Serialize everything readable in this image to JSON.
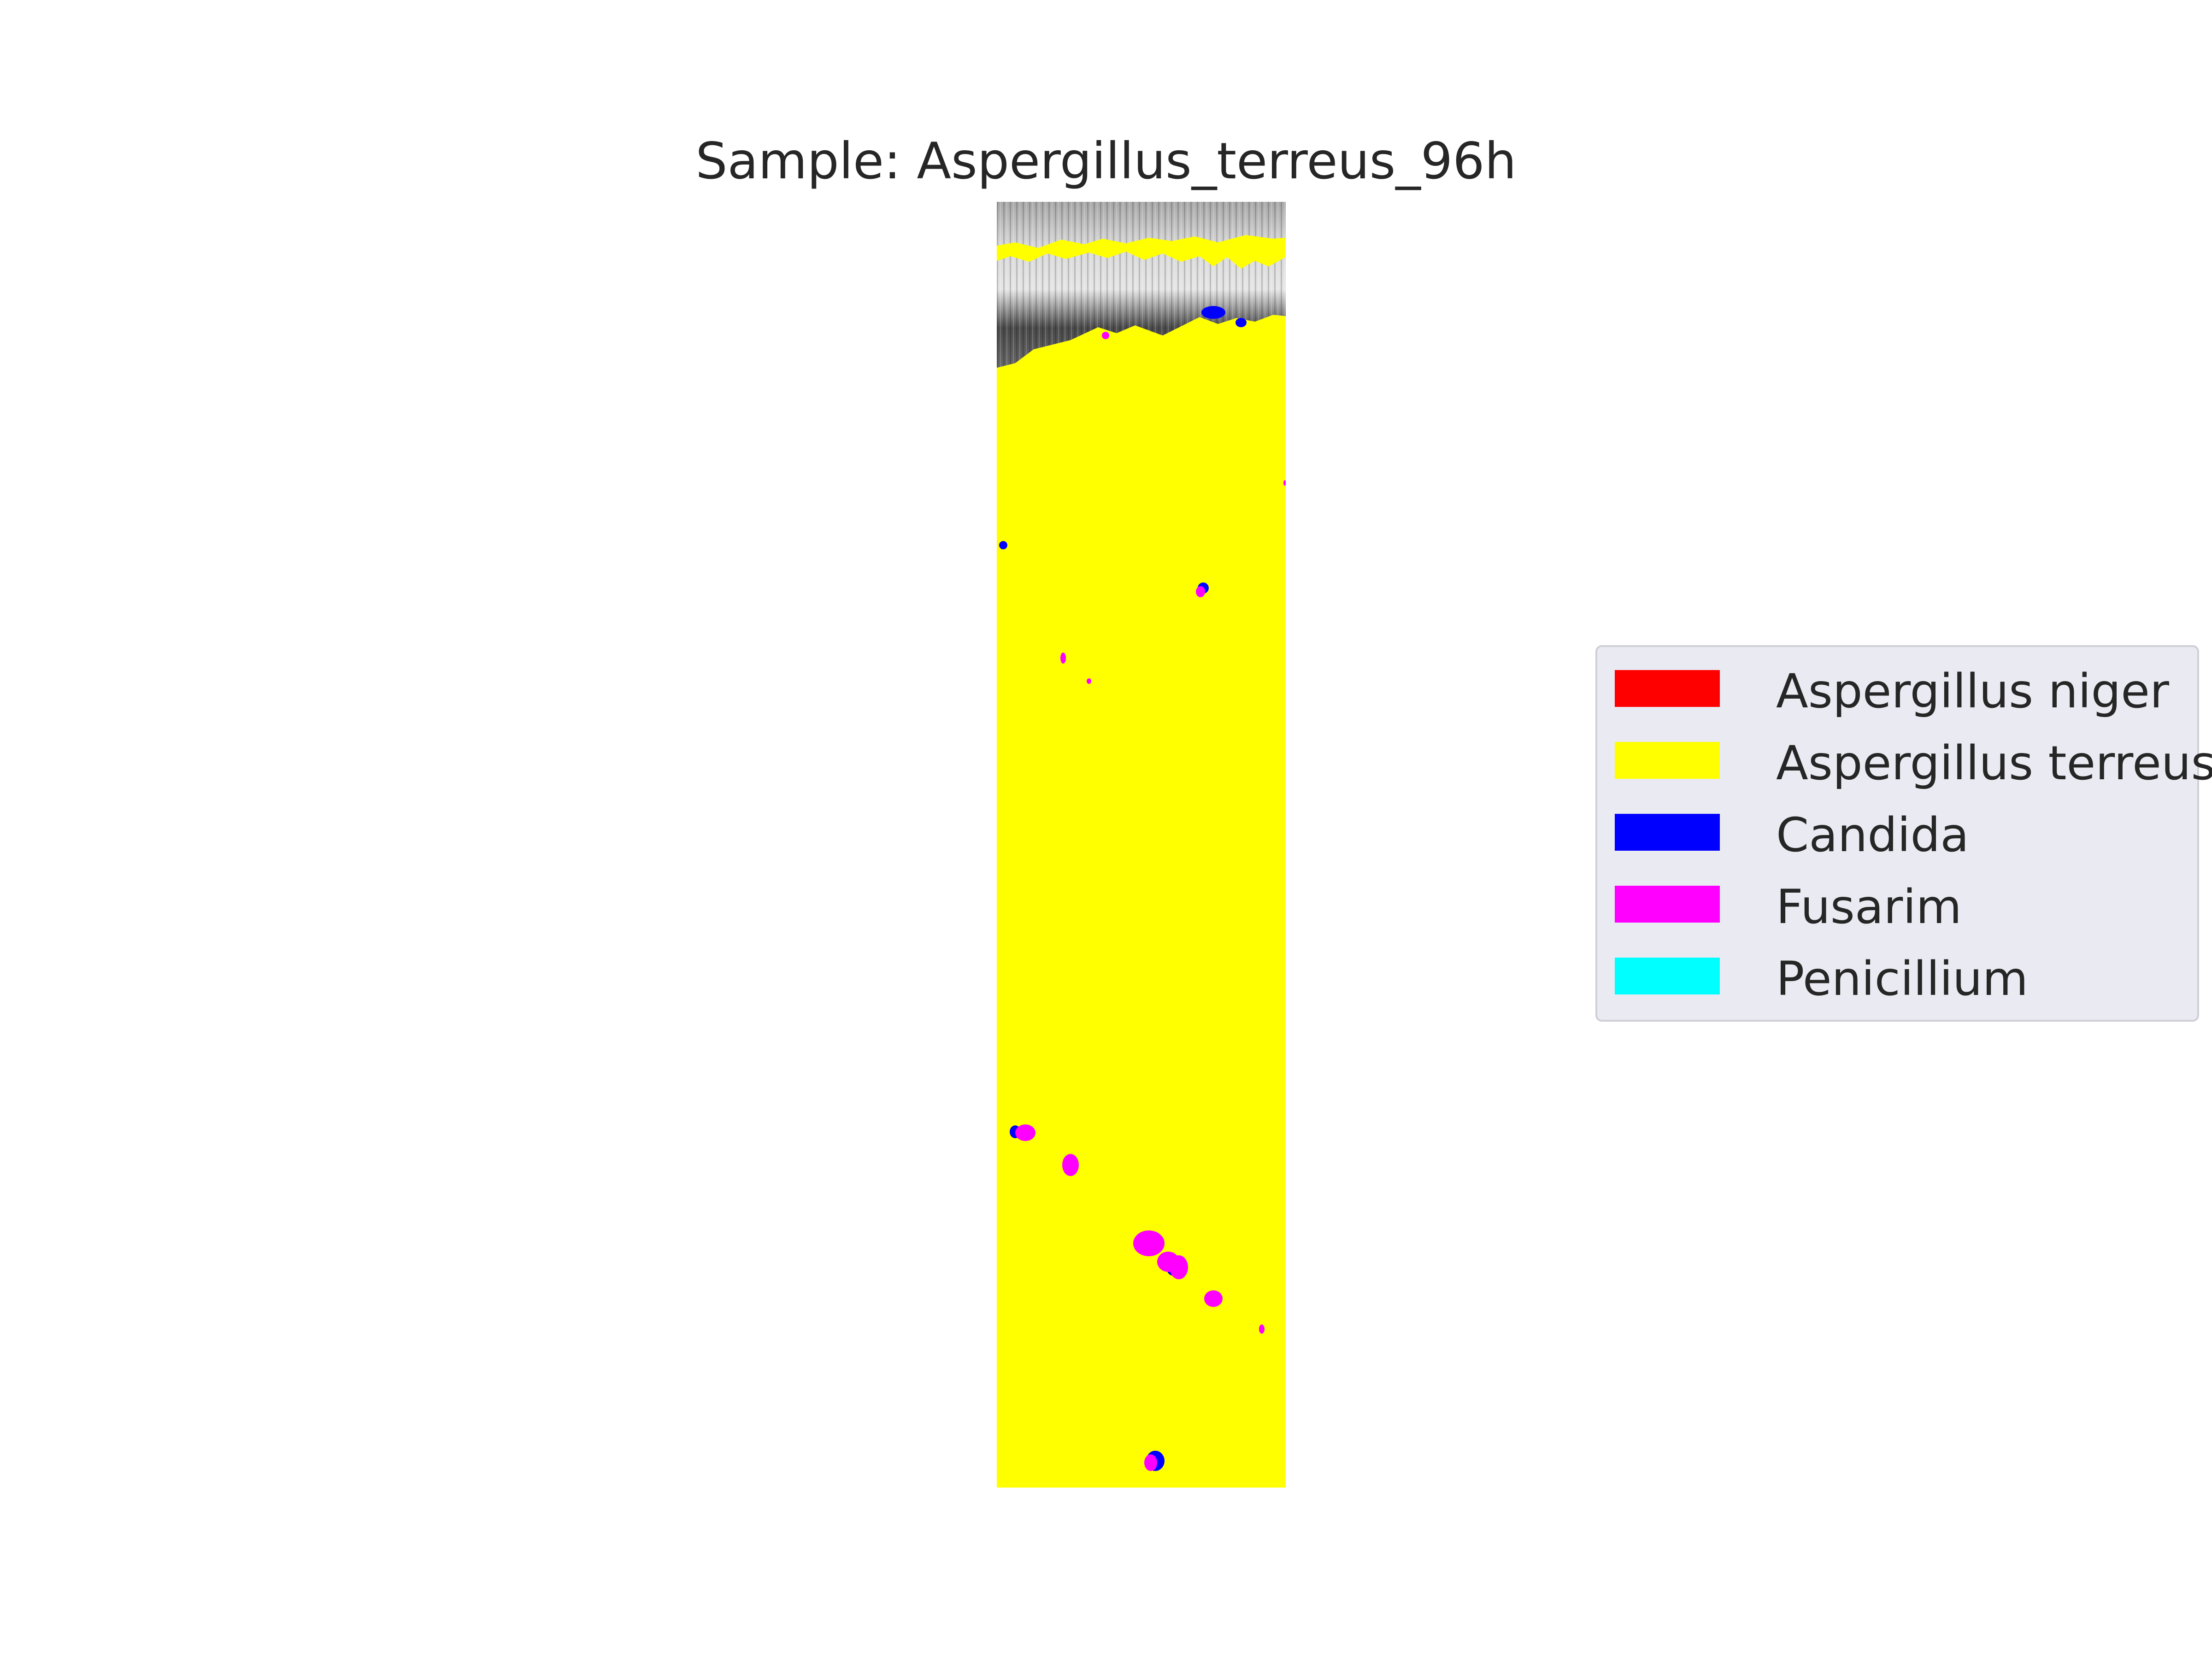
{
  "title": "Sample: Aspergillus_terreus_96h",
  "legend": [
    {
      "label": "Aspergillus niger",
      "color": "#ff0000"
    },
    {
      "label": "Aspergillus terreus",
      "color": "#ffff00"
    },
    {
      "label": "Candida",
      "color": "#0000ff"
    },
    {
      "label": "Fusarim",
      "color": "#ff00ff"
    },
    {
      "label": "Penicillium",
      "color": "#00ffff"
    }
  ],
  "image": {
    "background_color": "#ffff00",
    "region_colors": {
      "grayscale": "#7a7a7a",
      "candida": "#0000ff",
      "fusarim": "#ff00ff"
    }
  }
}
